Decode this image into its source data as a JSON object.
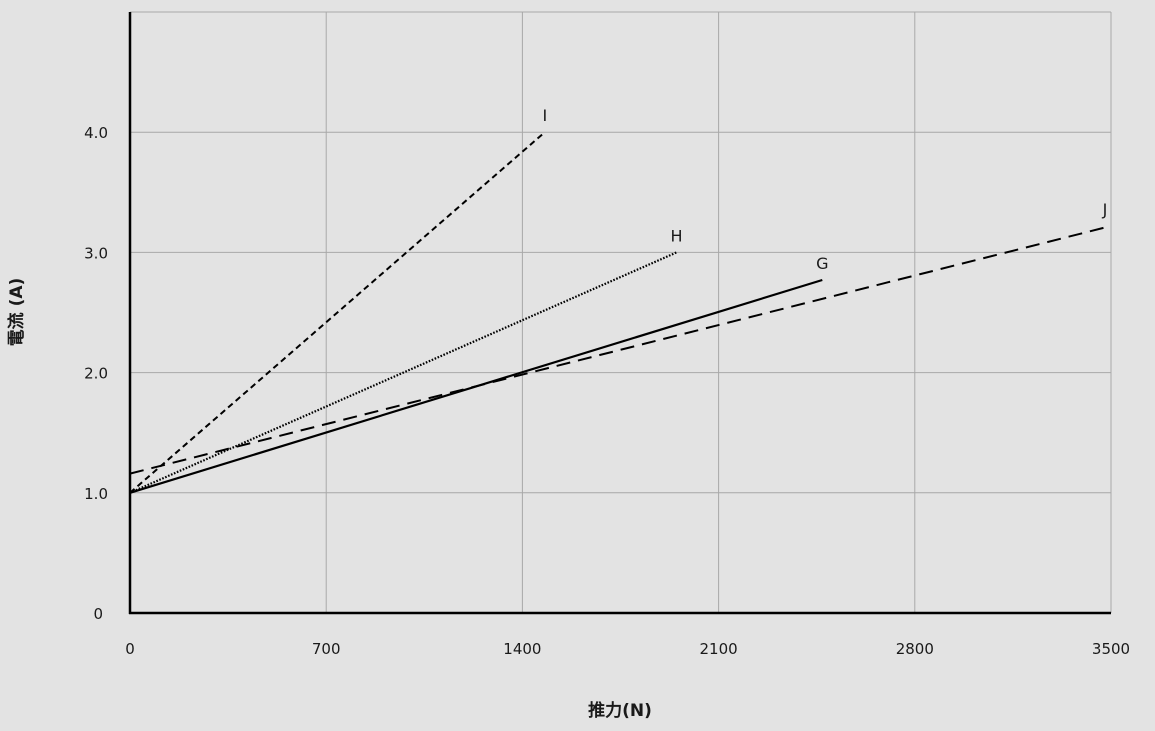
{
  "chart_data": {
    "type": "line",
    "title": "",
    "xlabel": "推力(N)",
    "ylabel": "電流 (A)",
    "xlim": [
      0,
      3500
    ],
    "ylim": [
      0,
      5.0
    ],
    "xticks": [
      0,
      700,
      1400,
      2100,
      2800,
      3500
    ],
    "xtick_labels": [
      "0",
      "700",
      "1400",
      "2100",
      "2800",
      "3500"
    ],
    "yticks": [
      0,
      1.0,
      2.0,
      3.0,
      4.0
    ],
    "ytick_labels": [
      "0",
      "1.0",
      "2.0",
      "3.0",
      "4.0"
    ],
    "grid": true,
    "legend": "none",
    "series": [
      {
        "name": "I",
        "style": "short-dash",
        "x": [
          0,
          1480
        ],
        "y": [
          1.0,
          4.0
        ]
      },
      {
        "name": "H",
        "style": "dotted",
        "x": [
          0,
          1950
        ],
        "y": [
          1.0,
          3.0
        ]
      },
      {
        "name": "G",
        "style": "solid",
        "x": [
          0,
          2470
        ],
        "y": [
          1.0,
          2.77
        ]
      },
      {
        "name": "J",
        "style": "long-dash",
        "x": [
          0,
          3500
        ],
        "y": [
          1.16,
          3.22
        ]
      }
    ],
    "colors": {
      "line": "#000000",
      "grid": "#a8a8a8",
      "axis": "#000000",
      "background": "#e3e3e3"
    }
  }
}
